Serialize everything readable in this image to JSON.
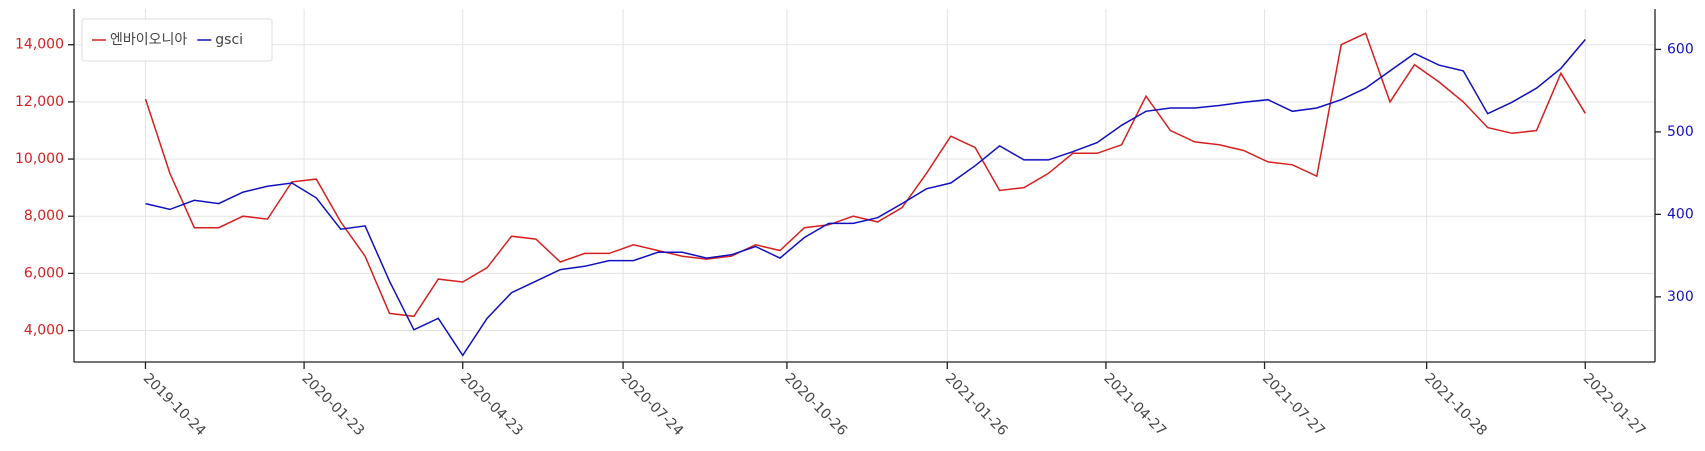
{
  "chart_data": {
    "type": "line",
    "x": [
      "2019-10-24",
      "2019-11-07",
      "2019-11-21",
      "2019-12-05",
      "2019-12-19",
      "2020-01-02",
      "2020-01-16",
      "2020-01-30",
      "2020-02-13",
      "2020-02-27",
      "2020-03-12",
      "2020-03-26",
      "2020-04-09",
      "2020-04-23",
      "2020-05-07",
      "2020-05-21",
      "2020-06-04",
      "2020-06-18",
      "2020-07-02",
      "2020-07-16",
      "2020-07-30",
      "2020-08-13",
      "2020-08-27",
      "2020-09-10",
      "2020-09-24",
      "2020-10-08",
      "2020-10-22",
      "2020-11-05",
      "2020-11-19",
      "2020-12-03",
      "2020-12-17",
      "2020-12-31",
      "2021-01-14",
      "2021-01-28",
      "2021-02-11",
      "2021-02-25",
      "2021-03-11",
      "2021-03-25",
      "2021-04-08",
      "2021-04-22",
      "2021-05-06",
      "2021-05-20",
      "2021-06-03",
      "2021-06-17",
      "2021-07-01",
      "2021-07-15",
      "2021-07-29",
      "2021-08-12",
      "2021-08-26",
      "2021-09-09",
      "2021-09-23",
      "2021-10-07",
      "2021-10-21",
      "2021-11-04",
      "2021-11-18",
      "2021-12-02",
      "2021-12-16",
      "2021-12-30",
      "2022-01-13",
      "2022-01-27"
    ],
    "series": [
      {
        "name": "엔바이오니아",
        "color": "#d62020",
        "axis": "y",
        "values": [
          12100,
          9500,
          7600,
          7600,
          8000,
          7900,
          9200,
          9300,
          7800,
          6600,
          4600,
          4500,
          5800,
          5700,
          6200,
          7300,
          7200,
          6400,
          6700,
          6700,
          7000,
          6800,
          6600,
          6500,
          6600,
          7000,
          6800,
          7600,
          7700,
          8000,
          7800,
          8300,
          9500,
          10800,
          10400,
          8900,
          9000,
          9500,
          10200,
          10200,
          10500,
          12200,
          11000,
          10600,
          10500,
          10300,
          9900,
          9800,
          9400,
          14000,
          14400,
          12000,
          13300,
          12700,
          12000,
          11100,
          10900,
          11000,
          13000,
          11600
        ]
      },
      {
        "name": "gsci",
        "color": "#1010c0",
        "axis": "y2",
        "values": [
          413,
          406,
          417,
          413,
          427,
          434,
          438,
          420,
          382,
          386,
          319,
          260,
          274,
          229,
          274,
          305,
          319,
          333,
          337,
          344,
          344,
          354,
          354,
          347,
          351,
          361,
          347,
          372,
          389,
          389,
          396,
          413,
          431,
          438,
          459,
          483,
          466,
          466,
          476,
          487,
          508,
          525,
          529,
          529,
          532,
          536,
          539,
          525,
          529,
          539,
          553,
          574,
          595,
          581,
          574,
          522,
          536,
          553,
          577,
          612
        ]
      }
    ],
    "xlim": [
      "2019-09-13",
      "2022-03-08"
    ],
    "xticks": [
      "2019-10-24",
      "2020-01-23",
      "2020-04-23",
      "2020-07-24",
      "2020-10-26",
      "2021-01-26",
      "2021-04-27",
      "2021-07-27",
      "2021-10-28",
      "2022-01-27"
    ],
    "ylim": [
      2900,
      15250
    ],
    "yticks": [
      {
        "value": 4000,
        "label": "4,000"
      },
      {
        "value": 6000,
        "label": "6,000"
      },
      {
        "value": 8000,
        "label": "8,000"
      },
      {
        "value": 10000,
        "label": "10,000"
      },
      {
        "value": 12000,
        "label": "12,000"
      },
      {
        "value": 14000,
        "label": "14,000"
      }
    ],
    "y2lim": [
      221,
      649
    ],
    "y2ticks": [
      300,
      400,
      500,
      600
    ],
    "grid": true,
    "legend": "upper left"
  }
}
